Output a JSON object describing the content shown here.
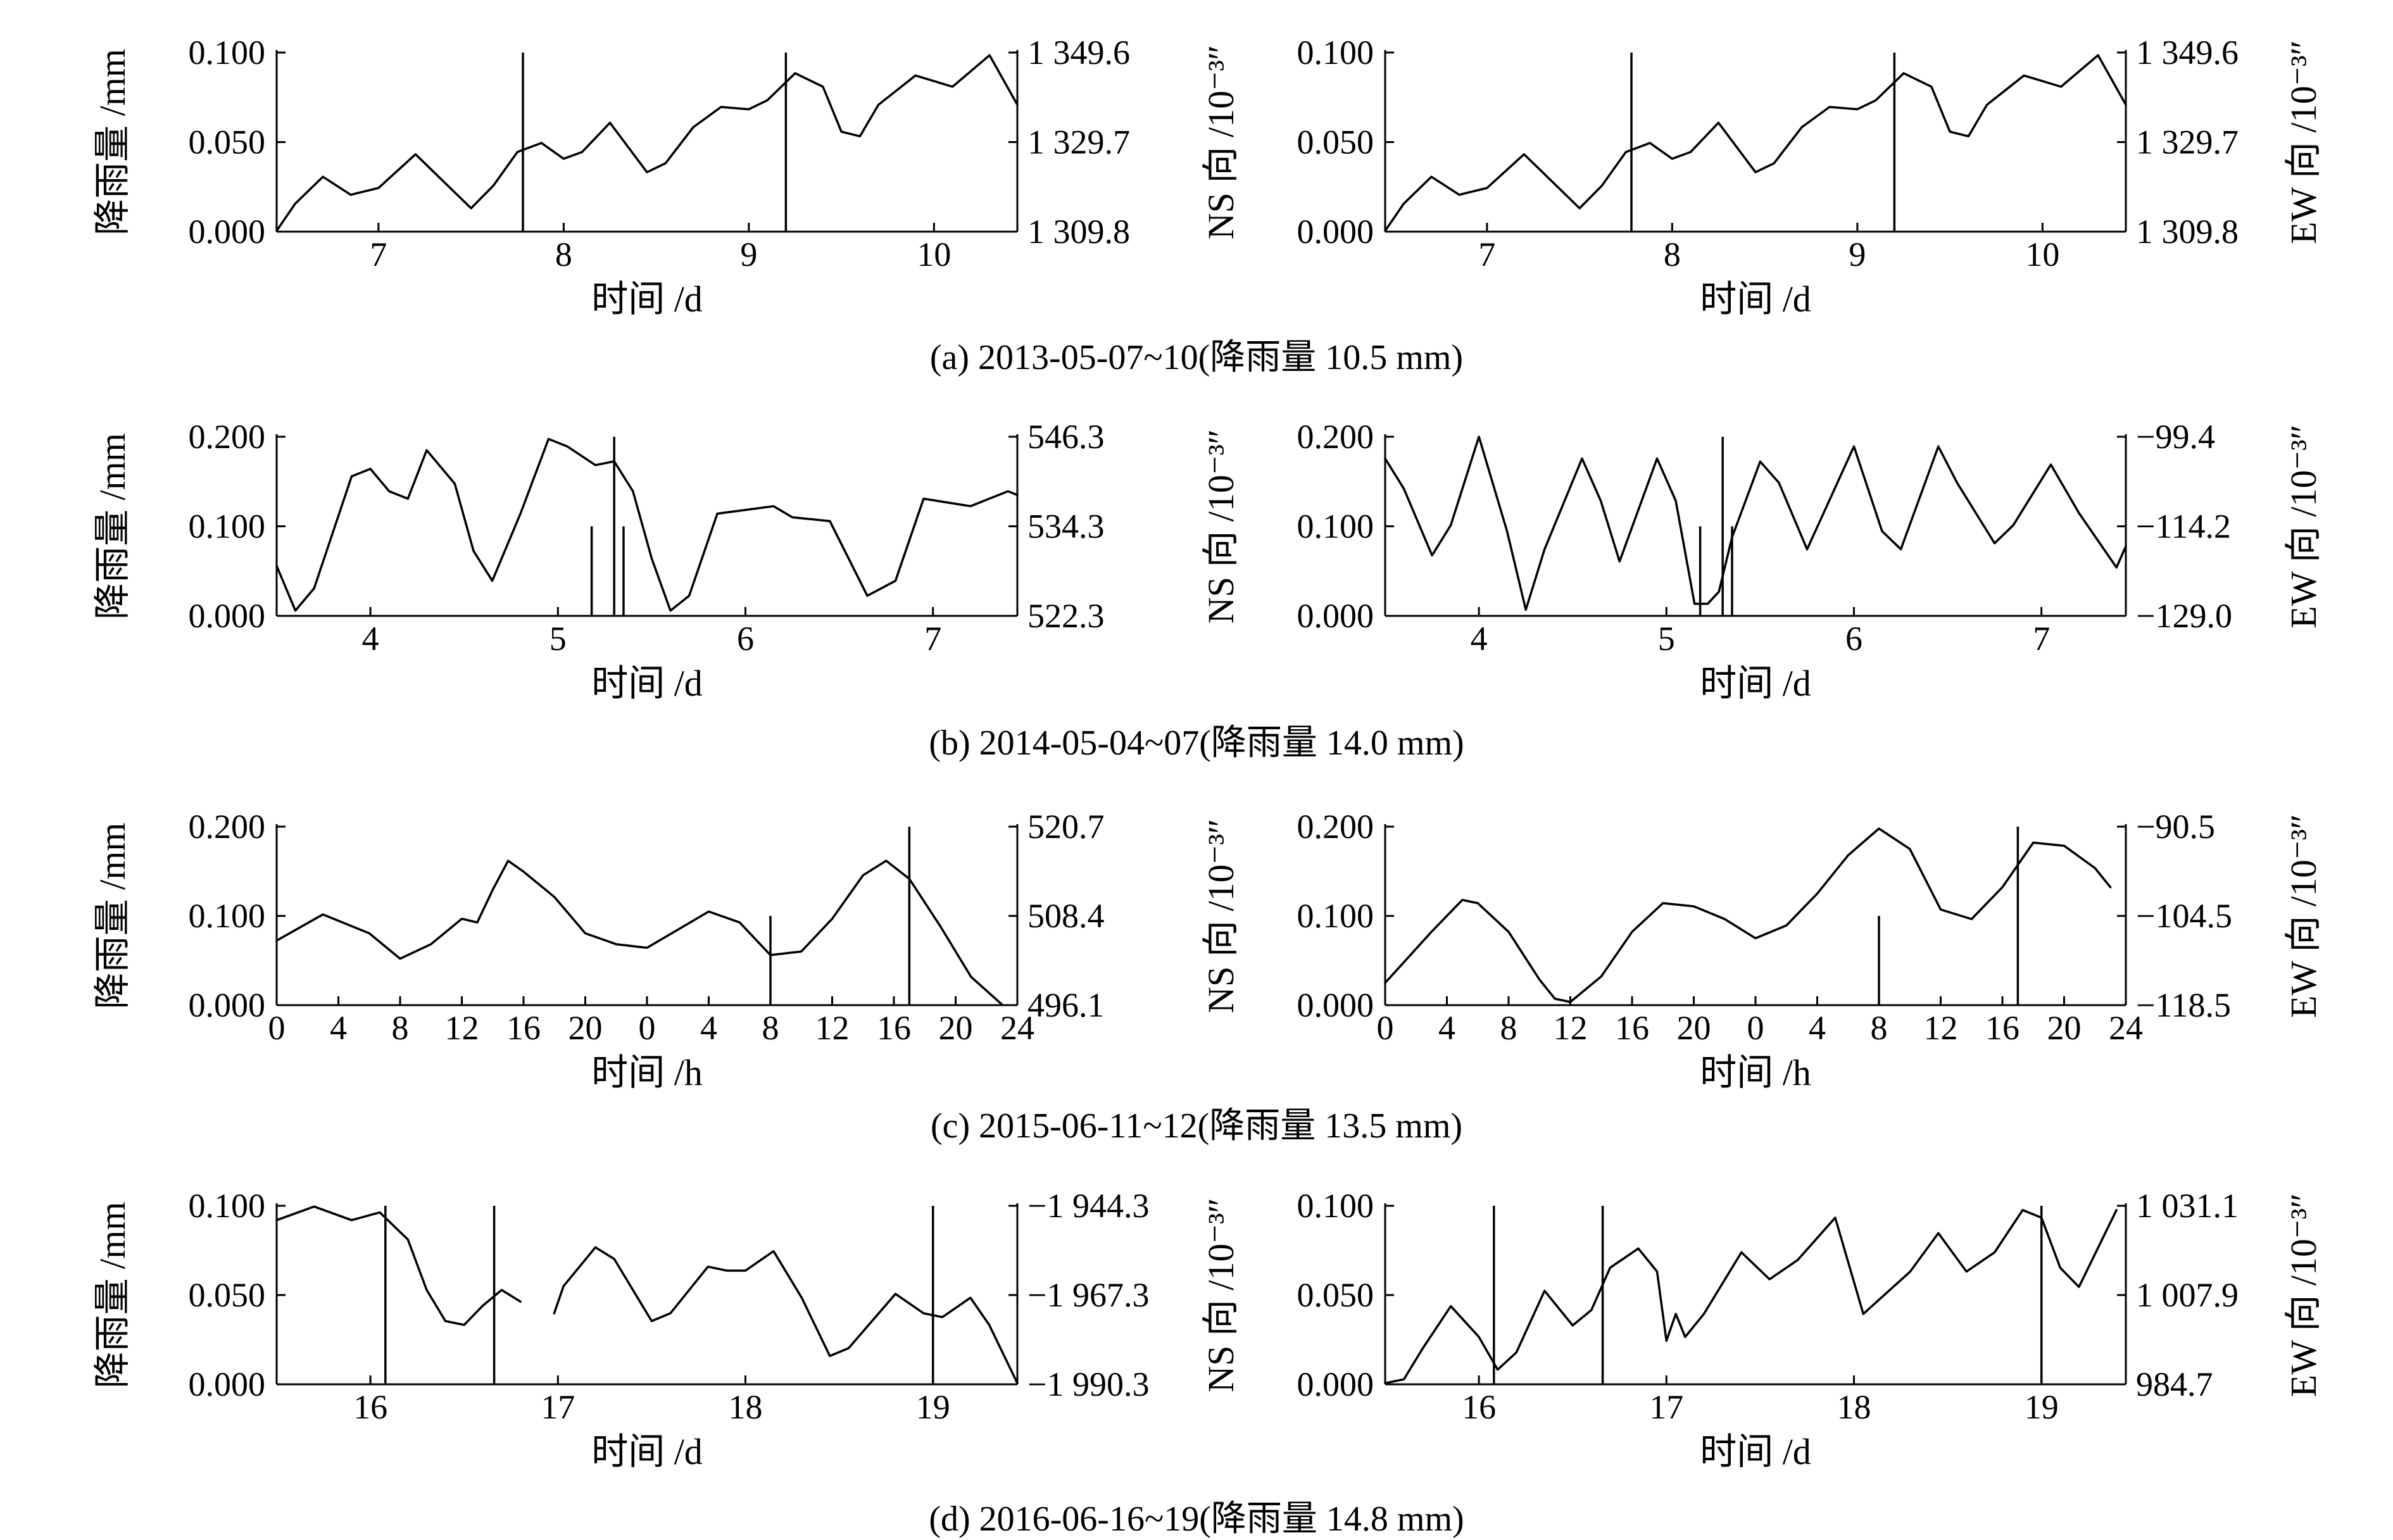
{
  "figure": {
    "captions": [
      "(a) 2013-05-07~10(降雨量 10.5 mm)",
      "(b) 2014-05-04~07(降雨量 14.0 mm)",
      "(c) 2015-06-11~12(降雨量 13.5 mm)",
      "(d) 2016-06-16~19(降雨量 14.8 mm)"
    ]
  },
  "chart_data": [
    {
      "id": "a-left",
      "type": "line",
      "panel": "(a)",
      "side": "left",
      "xlabel": "时间 /d",
      "ylabel_left": "降雨量 /mm",
      "ylabel_right": "",
      "xlim": [
        6.45,
        10.45
      ],
      "xticks": [
        "7",
        "8",
        "9",
        "10"
      ],
      "xtick_values": [
        7,
        8,
        9,
        10
      ],
      "ylim": [
        0,
        0.1
      ],
      "yticks_left": [
        "0.000",
        "0.050",
        "0.100"
      ],
      "ylim_right": [
        1309.8,
        1349.6
      ],
      "yticks_right": [
        "1 309.8",
        "1 329.7",
        "1 349.6"
      ],
      "rain_bars": [
        {
          "x": 7.78,
          "mm": 0.1
        },
        {
          "x": 9.2,
          "mm": 0.1
        }
      ],
      "series": [
        {
          "axis": "right",
          "x": [
            6.45,
            6.55,
            6.7,
            6.85,
            7.0,
            7.2,
            7.35,
            7.5,
            7.62,
            7.75,
            7.88,
            8.0,
            8.1,
            8.25,
            8.45,
            8.55,
            8.7,
            8.85,
            9.0,
            9.1,
            9.25,
            9.4,
            9.5,
            9.6,
            9.7,
            9.9,
            10.1,
            10.3,
            10.45
          ],
          "y": [
            1310.0,
            1316.0,
            1322.0,
            1318.0,
            1319.5,
            1327.0,
            1321.0,
            1315.0,
            1320.0,
            1327.5,
            1329.5,
            1326.0,
            1327.5,
            1334.0,
            1323.0,
            1325.0,
            1333.0,
            1337.5,
            1337.0,
            1339.0,
            1345.0,
            1342.0,
            1332.0,
            1331.0,
            1338.0,
            1344.5,
            1342.0,
            1349.0,
            1338.0
          ]
        }
      ]
    },
    {
      "id": "a-right",
      "type": "line",
      "panel": "(a)",
      "side": "right",
      "xlabel": "时间 /d",
      "ylabel_left": "NS 向 /10⁻³″",
      "ylabel_right": "EW 向 /10⁻³″",
      "xlim": [
        6.45,
        10.45
      ],
      "xticks": [
        "7",
        "8",
        "9",
        "10"
      ],
      "xtick_values": [
        7,
        8,
        9,
        10
      ],
      "ylim": [
        0,
        0.1
      ],
      "yticks_left": [
        "0.000",
        "0.050",
        "0.100"
      ],
      "ylim_right": [
        1309.8,
        1349.6
      ],
      "yticks_right": [
        "1 309.8",
        "1 329.7",
        "1 349.6"
      ],
      "rain_bars": [
        {
          "x": 7.78,
          "mm": 0.1
        },
        {
          "x": 9.2,
          "mm": 0.1
        }
      ],
      "series": [
        {
          "axis": "right",
          "x": [
            6.45,
            6.55,
            6.7,
            6.85,
            7.0,
            7.2,
            7.35,
            7.5,
            7.62,
            7.75,
            7.88,
            8.0,
            8.1,
            8.25,
            8.45,
            8.55,
            8.7,
            8.85,
            9.0,
            9.1,
            9.25,
            9.4,
            9.5,
            9.6,
            9.7,
            9.9,
            10.1,
            10.3,
            10.45
          ],
          "y": [
            1310.0,
            1316.0,
            1322.0,
            1318.0,
            1319.5,
            1327.0,
            1321.0,
            1315.0,
            1320.0,
            1327.5,
            1329.5,
            1326.0,
            1327.5,
            1334.0,
            1323.0,
            1325.0,
            1333.0,
            1337.5,
            1337.0,
            1339.0,
            1345.0,
            1342.0,
            1332.0,
            1331.0,
            1338.0,
            1344.5,
            1342.0,
            1349.0,
            1338.0
          ]
        }
      ]
    },
    {
      "id": "b-left",
      "type": "line",
      "panel": "(b)",
      "side": "left",
      "xlabel": "时间 /d",
      "ylabel_left": "降雨量 /mm",
      "ylabel_right": "",
      "xlim": [
        3.5,
        7.45
      ],
      "xticks": [
        "4",
        "5",
        "6",
        "7"
      ],
      "xtick_values": [
        4,
        5,
        6,
        7
      ],
      "ylim": [
        0,
        0.2
      ],
      "yticks_left": [
        "0.000",
        "0.100",
        "0.200"
      ],
      "ylim_right": [
        522.3,
        546.3
      ],
      "yticks_right": [
        "522.3",
        "534.3",
        "546.3"
      ],
      "rain_bars": [
        {
          "x": 5.18,
          "mm": 0.1
        },
        {
          "x": 5.3,
          "mm": 0.2
        },
        {
          "x": 5.35,
          "mm": 0.1
        }
      ],
      "series": [
        {
          "axis": "right",
          "x": [
            3.5,
            3.6,
            3.7,
            3.9,
            4.0,
            4.1,
            4.2,
            4.3,
            4.45,
            4.55,
            4.65,
            4.8,
            4.95,
            5.05,
            5.2,
            5.3,
            5.4,
            5.5,
            5.6,
            5.7,
            5.85,
            6.0,
            6.15,
            6.25,
            6.45,
            6.65,
            6.8,
            6.95,
            7.2,
            7.4,
            7.45
          ],
          "y": [
            529.0,
            523.0,
            526.0,
            541.0,
            542.0,
            539.0,
            538.0,
            544.5,
            540.0,
            531.0,
            527.0,
            536.0,
            546.0,
            545.0,
            542.5,
            543.0,
            539.0,
            530.0,
            523.0,
            525.0,
            536.0,
            536.5,
            537.0,
            535.5,
            535.0,
            525.0,
            527.0,
            538.0,
            537.0,
            539.0,
            538.5
          ]
        }
      ]
    },
    {
      "id": "b-right",
      "type": "line",
      "panel": "(b)",
      "side": "right",
      "xlabel": "时间 /d",
      "ylabel_left": "NS 向 /10⁻³″",
      "ylabel_right": "EW 向 /10⁻³″",
      "xlim": [
        3.5,
        7.45
      ],
      "xticks": [
        "4",
        "5",
        "6",
        "7"
      ],
      "xtick_values": [
        4,
        5,
        6,
        7
      ],
      "ylim": [
        0,
        0.2
      ],
      "yticks_left": [
        "0.000",
        "0.100",
        "0.200"
      ],
      "ylim_right": [
        -129.0,
        -99.4
      ],
      "yticks_right": [
        "−129.0",
        "−114.2",
        "−99.4"
      ],
      "rain_bars": [
        {
          "x": 5.18,
          "mm": 0.1
        },
        {
          "x": 5.3,
          "mm": 0.2
        },
        {
          "x": 5.35,
          "mm": 0.1
        }
      ],
      "series": [
        {
          "axis": "right",
          "x": [
            3.5,
            3.6,
            3.75,
            3.85,
            4.0,
            4.15,
            4.25,
            4.35,
            4.55,
            4.65,
            4.75,
            4.95,
            5.05,
            5.15,
            5.22,
            5.28,
            5.35,
            5.5,
            5.6,
            5.75,
            6.0,
            6.15,
            6.25,
            6.45,
            6.55,
            6.75,
            6.85,
            7.05,
            7.2,
            7.4,
            7.45
          ],
          "y": [
            -103.0,
            -108.0,
            -119.0,
            -114.0,
            -99.4,
            -115.0,
            -128.0,
            -118.0,
            -103.0,
            -110.0,
            -120.0,
            -103.0,
            -110.0,
            -127.0,
            -127.0,
            -125.0,
            -116.0,
            -103.5,
            -107.0,
            -118.0,
            -101.0,
            -115.0,
            -118.0,
            -101.0,
            -107.0,
            -117.0,
            -114.0,
            -104.0,
            -112.0,
            -121.0,
            -117.5
          ]
        }
      ]
    },
    {
      "id": "c-left",
      "type": "line",
      "panel": "(c)",
      "side": "left",
      "xlabel": "时间 /h",
      "ylabel_left": "降雨量 /mm",
      "ylabel_right": "",
      "xlim": [
        0,
        48
      ],
      "xticks": [
        "0",
        "4",
        "8",
        "12",
        "16",
        "20",
        "0",
        "4",
        "8",
        "12",
        "16",
        "20",
        "24"
      ],
      "xtick_values": [
        0,
        4,
        8,
        12,
        16,
        20,
        24,
        28,
        32,
        36,
        40,
        44,
        48
      ],
      "ylim": [
        0,
        0.2
      ],
      "yticks_left": [
        "0.000",
        "0.100",
        "0.200"
      ],
      "ylim_right": [
        496.1,
        520.7
      ],
      "yticks_right": [
        "496.1",
        "508.4",
        "520.7"
      ],
      "rain_bars": [
        {
          "x": 32,
          "mm": 0.1
        },
        {
          "x": 41,
          "mm": 0.2
        }
      ],
      "series": [
        {
          "axis": "right",
          "x": [
            0,
            3,
            6,
            8,
            10,
            12,
            13,
            14,
            15,
            16,
            18,
            20,
            22,
            24,
            26,
            28,
            30,
            32,
            34,
            36,
            38,
            39.5,
            41,
            43,
            45,
            47
          ],
          "y": [
            505.0,
            508.6,
            506.0,
            502.5,
            504.5,
            508.0,
            507.5,
            512.0,
            516.0,
            514.5,
            511.0,
            506.0,
            504.5,
            504.0,
            506.5,
            509.0,
            507.5,
            503.0,
            503.5,
            508.0,
            514.0,
            516.0,
            513.5,
            507.0,
            500.0,
            496.2
          ]
        }
      ]
    },
    {
      "id": "c-right",
      "type": "line",
      "panel": "(c)",
      "side": "right",
      "xlabel": "时间 /h",
      "ylabel_left": "NS 向 /10⁻³″",
      "ylabel_right": "EW 向 /10⁻³″",
      "xlim": [
        0,
        48
      ],
      "xticks": [
        "0",
        "4",
        "8",
        "12",
        "16",
        "20",
        "0",
        "4",
        "8",
        "12",
        "16",
        "20",
        "24"
      ],
      "xtick_values": [
        0,
        4,
        8,
        12,
        16,
        20,
        24,
        28,
        32,
        36,
        40,
        44,
        48
      ],
      "ylim": [
        0,
        0.2
      ],
      "yticks_left": [
        "0.000",
        "0.100",
        "0.200"
      ],
      "ylim_right": [
        -118.5,
        -90.5
      ],
      "yticks_right": [
        "−118.5",
        "−104.5",
        "−90.5"
      ],
      "rain_bars": [
        {
          "x": 32,
          "mm": 0.1
        },
        {
          "x": 41,
          "mm": 0.2
        }
      ],
      "series": [
        {
          "axis": "right",
          "x": [
            0,
            3,
            5,
            6,
            8,
            10,
            11,
            12,
            14,
            16,
            18,
            20,
            22,
            24,
            26,
            28,
            30,
            32,
            34,
            36,
            38,
            40,
            42,
            44,
            46,
            47
          ],
          "y": [
            -115.0,
            -107.0,
            -102.0,
            -102.5,
            -107.0,
            -114.5,
            -117.5,
            -118.0,
            -114.0,
            -107.0,
            -102.5,
            -103.0,
            -105.0,
            -108.0,
            -106.0,
            -101.0,
            -95.0,
            -90.8,
            -94.0,
            -103.5,
            -105.0,
            -100.0,
            -93.0,
            -93.5,
            -97.0,
            -100.0
          ]
        }
      ]
    },
    {
      "id": "d-left",
      "type": "line",
      "panel": "(d)",
      "side": "left",
      "xlabel": "时间 /d",
      "ylabel_left": "降雨量 /mm",
      "ylabel_right": "",
      "xlim": [
        15.5,
        19.45
      ],
      "xticks": [
        "16",
        "17",
        "18",
        "19"
      ],
      "xtick_values": [
        16,
        17,
        18,
        19
      ],
      "ylim": [
        0,
        0.1
      ],
      "yticks_left": [
        "0.000",
        "0.050",
        "0.100"
      ],
      "ylim_right": [
        -1990.3,
        -1944.3
      ],
      "yticks_right": [
        "−1 990.3",
        "−1 967.3",
        "−1 944.3"
      ],
      "rain_bars": [
        {
          "x": 16.08,
          "mm": 0.1
        },
        {
          "x": 16.66,
          "mm": 0.1
        },
        {
          "x": 19.0,
          "mm": 0.1
        }
      ],
      "series": [
        {
          "axis": "right",
          "x": [
            15.5,
            15.7,
            15.9,
            16.05,
            16.2,
            16.3,
            16.4,
            16.5,
            16.6,
            16.7,
            16.8
          ],
          "y": [
            -1948.0,
            -1944.5,
            -1948.0,
            -1946.0,
            -1953.0,
            -1966.0,
            -1974.0,
            -1975.0,
            -1970.0,
            -1966.0,
            -1969.0
          ]
        },
        {
          "axis": "right",
          "x": [
            16.98,
            17.03,
            17.2,
            17.3,
            17.5,
            17.6,
            17.8,
            17.9,
            18.0,
            18.15,
            18.3,
            18.45,
            18.55,
            18.8,
            18.95,
            19.05,
            19.2,
            19.3,
            19.45
          ],
          "y": [
            -1972.0,
            -1965.0,
            -1955.0,
            -1958.0,
            -1974.0,
            -1972.0,
            -1960.0,
            -1961.0,
            -1961.0,
            -1956.0,
            -1968.0,
            -1983.0,
            -1981.0,
            -1967.0,
            -1972.0,
            -1973.0,
            -1968.0,
            -1975.0,
            -1990.0
          ]
        }
      ]
    },
    {
      "id": "d-right",
      "type": "line",
      "panel": "(d)",
      "side": "right",
      "xlabel": "时间 /d",
      "ylabel_left": "NS 向 /10⁻³″",
      "ylabel_right": "EW 向 /10⁻³″",
      "xlim": [
        15.5,
        19.45
      ],
      "xticks": [
        "16",
        "17",
        "18",
        "19"
      ],
      "xtick_values": [
        16,
        17,
        18,
        19
      ],
      "ylim": [
        0,
        0.1
      ],
      "yticks_left": [
        "0.000",
        "0.050",
        "0.100"
      ],
      "ylim_right": [
        984.7,
        1031.1
      ],
      "yticks_right": [
        "984.7",
        "1 007.9",
        "1 031.1"
      ],
      "rain_bars": [
        {
          "x": 16.08,
          "mm": 0.1
        },
        {
          "x": 16.66,
          "mm": 0.1
        },
        {
          "x": 19.0,
          "mm": 0.1
        }
      ],
      "series": [
        {
          "axis": "right",
          "x": [
            15.5,
            15.6,
            15.7,
            15.85,
            16.0,
            16.1,
            16.2,
            16.35,
            16.5,
            16.6,
            16.7,
            16.85,
            16.95,
            17.0,
            17.05,
            17.1,
            17.2,
            17.4,
            17.55,
            17.7,
            17.9,
            18.05,
            18.3,
            18.45,
            18.6,
            18.75,
            18.9,
            19.0,
            19.1,
            19.2,
            19.4
          ],
          "y": [
            985.0,
            986.0,
            994.0,
            1005.0,
            997.0,
            988.5,
            993.0,
            1009.0,
            1000.0,
            1004.0,
            1015.0,
            1020.0,
            1014.0,
            996.0,
            1003.0,
            997.0,
            1003.0,
            1019.0,
            1012.0,
            1017.0,
            1028.0,
            1003.0,
            1014.0,
            1024.0,
            1014.0,
            1019.0,
            1030.0,
            1028.0,
            1015.0,
            1010.0,
            1030.0
          ]
        }
      ]
    }
  ]
}
